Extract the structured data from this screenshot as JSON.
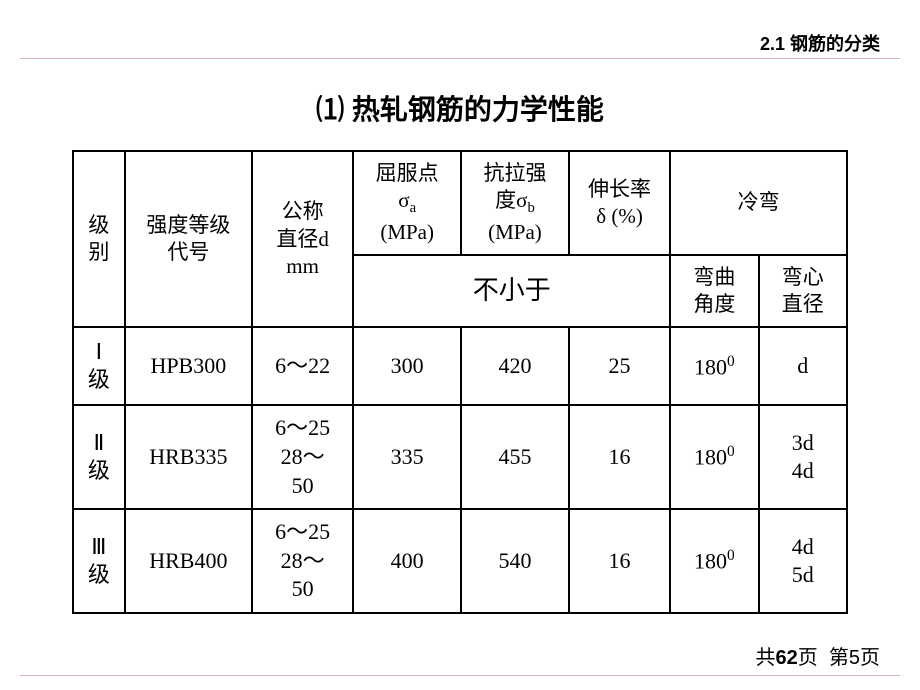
{
  "header": {
    "section": "2.1 钢筋的分类"
  },
  "title": "⑴ 热轧钢筋的力学性能",
  "table": {
    "headers": {
      "level": "级别",
      "grade": "强度等级代号",
      "diameter": "公称直径d mm",
      "yield": "屈服点σₐ (MPa)",
      "tensile": "抗拉强度σ_b (MPa)",
      "elongation": "伸长率δ (%)",
      "cold_bend": "冷弯",
      "not_less_than": "不小于",
      "bend_angle": "弯曲角度",
      "bend_diameter": "弯心直径"
    },
    "rows": [
      {
        "level": "Ⅰ级",
        "grade": "HPB300",
        "diameter": "6～22",
        "yield": "300",
        "tensile": "420",
        "elongation": "25",
        "bend_angle": "180⁰",
        "bend_diameter": "d"
      },
      {
        "level": "Ⅱ级",
        "grade": "HRB335",
        "diameter": "6～25 28～50",
        "yield": "335",
        "tensile": "455",
        "elongation": "16",
        "bend_angle": "180⁰",
        "bend_diameter": "3d 4d"
      },
      {
        "level": "Ⅲ级",
        "grade": "HRB400",
        "diameter": "6～25 28～50",
        "yield": "400",
        "tensile": "540",
        "elongation": "16",
        "bend_angle": "180⁰",
        "bend_diameter": "4d 5d"
      }
    ]
  },
  "footer": {
    "total_pages": "62",
    "current_page": "5",
    "total_label": "共",
    "page_label": "页",
    "current_label": "第"
  },
  "styling": {
    "background_color": "#ffffff",
    "border_color": "#000000",
    "text_color": "#000000",
    "divider_color": "#d8b5b5",
    "title_fontsize": 28,
    "header_fontsize": 18,
    "cell_fontsize": 22,
    "footer_fontsize": 20,
    "border_width": 2
  }
}
